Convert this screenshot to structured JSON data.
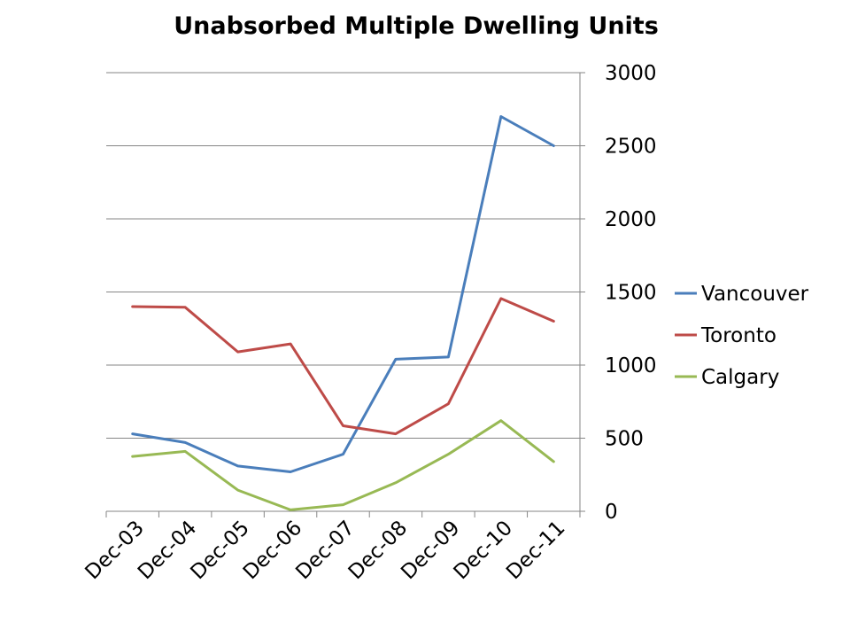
{
  "chart_data": {
    "type": "line",
    "title": "Unabsorbed Multiple Dwelling Units",
    "xlabel": "",
    "ylabel": "",
    "categories": [
      "Dec-03",
      "Dec-04",
      "Dec-05",
      "Dec-06",
      "Dec-07",
      "Dec-08",
      "Dec-09",
      "Dec-10",
      "Dec-11"
    ],
    "ylim": [
      0,
      3000
    ],
    "yticks": [
      "0",
      "500",
      "1000",
      "1500",
      "2000",
      "2500",
      "3000"
    ],
    "y_axis_side": "right",
    "grid": true,
    "legend_position": "right",
    "series": [
      {
        "name": "Vancouver",
        "color": "#4a7ebb",
        "values": [
          530,
          470,
          310,
          270,
          390,
          1040,
          1055,
          2700,
          2500
        ]
      },
      {
        "name": "Toronto",
        "color": "#be4b48",
        "values": [
          1400,
          1395,
          1090,
          1145,
          585,
          530,
          735,
          1455,
          1300
        ]
      },
      {
        "name": "Calgary",
        "color": "#98b954",
        "values": [
          375,
          410,
          145,
          10,
          45,
          195,
          390,
          620,
          340
        ]
      }
    ]
  }
}
